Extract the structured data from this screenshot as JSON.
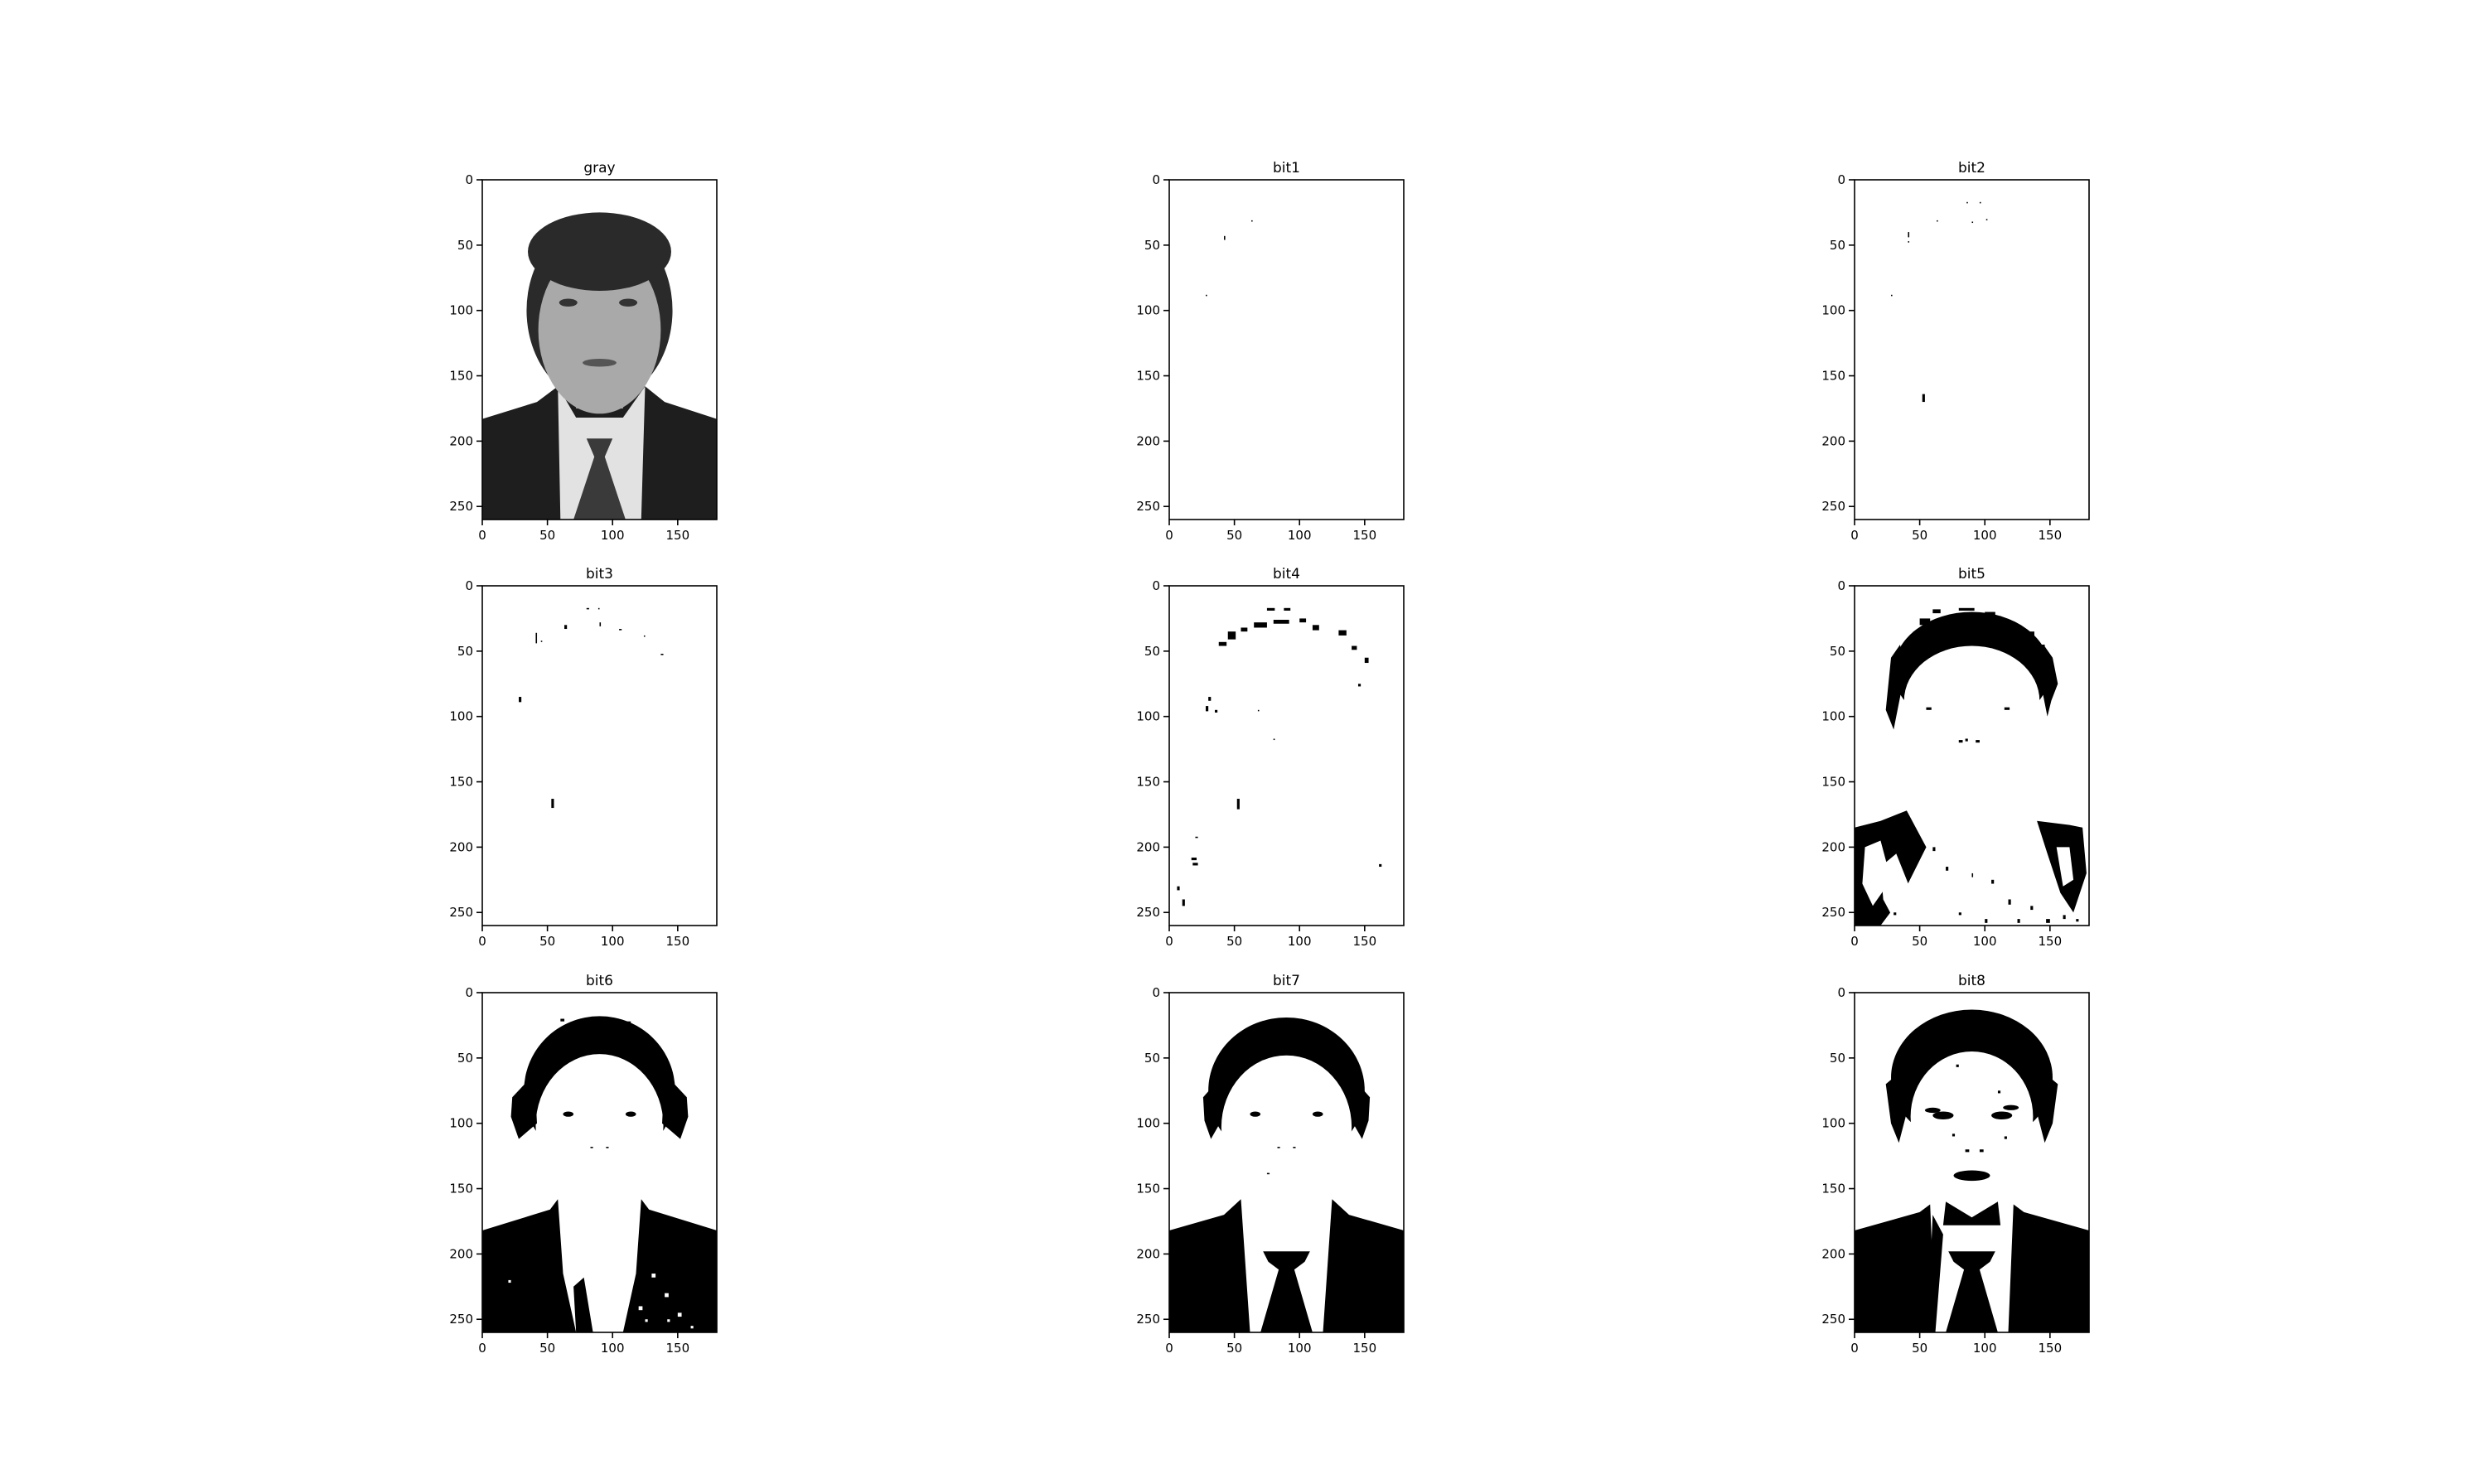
{
  "chart_data": [
    {
      "type": "image",
      "title": "gray",
      "content": "grayscale portrait",
      "xlim": [
        0,
        180
      ],
      "ylim": [
        260,
        0
      ],
      "xticks": [
        0,
        50,
        100,
        150
      ],
      "yticks": [
        0,
        50,
        100,
        150,
        200,
        250
      ]
    },
    {
      "type": "image",
      "title": "bit1",
      "content": "bit plane 1",
      "xlim": [
        0,
        180
      ],
      "ylim": [
        260,
        0
      ],
      "xticks": [
        0,
        50,
        100,
        150
      ],
      "yticks": [
        0,
        50,
        100,
        150,
        200,
        250
      ]
    },
    {
      "type": "image",
      "title": "bit2",
      "content": "bit plane 2",
      "xlim": [
        0,
        180
      ],
      "ylim": [
        260,
        0
      ],
      "xticks": [
        0,
        50,
        100,
        150
      ],
      "yticks": [
        0,
        50,
        100,
        150,
        200,
        250
      ]
    },
    {
      "type": "image",
      "title": "bit3",
      "content": "bit plane 3",
      "xlim": [
        0,
        180
      ],
      "ylim": [
        260,
        0
      ],
      "xticks": [
        0,
        50,
        100,
        150
      ],
      "yticks": [
        0,
        50,
        100,
        150,
        200,
        250
      ]
    },
    {
      "type": "image",
      "title": "bit4",
      "content": "bit plane 4",
      "xlim": [
        0,
        180
      ],
      "ylim": [
        260,
        0
      ],
      "xticks": [
        0,
        50,
        100,
        150
      ],
      "yticks": [
        0,
        50,
        100,
        150,
        200,
        250
      ]
    },
    {
      "type": "image",
      "title": "bit5",
      "content": "bit plane 5",
      "xlim": [
        0,
        180
      ],
      "ylim": [
        260,
        0
      ],
      "xticks": [
        0,
        50,
        100,
        150
      ],
      "yticks": [
        0,
        50,
        100,
        150,
        200,
        250
      ]
    },
    {
      "type": "image",
      "title": "bit6",
      "content": "bit plane 6",
      "xlim": [
        0,
        180
      ],
      "ylim": [
        260,
        0
      ],
      "xticks": [
        0,
        50,
        100,
        150
      ],
      "yticks": [
        0,
        50,
        100,
        150,
        200,
        250
      ]
    },
    {
      "type": "image",
      "title": "bit7",
      "content": "bit plane 7",
      "xlim": [
        0,
        180
      ],
      "ylim": [
        260,
        0
      ],
      "xticks": [
        0,
        50,
        100,
        150
      ],
      "yticks": [
        0,
        50,
        100,
        150,
        200,
        250
      ]
    },
    {
      "type": "image",
      "title": "bit8",
      "content": "bit plane 8",
      "xlim": [
        0,
        180
      ],
      "ylim": [
        260,
        0
      ],
      "xticks": [
        0,
        50,
        100,
        150
      ],
      "yticks": [
        0,
        50,
        100,
        150,
        200,
        250
      ]
    }
  ],
  "colors": {
    "background": "#ffffff",
    "ink": "#000000",
    "gray_skin": "#a9a9a9",
    "gray_shirt": "#e2e2e2",
    "gray_hair": "#2a2a2a",
    "gray_suit": "#1e1e1e",
    "gray_tie": "#3a3a3a"
  }
}
